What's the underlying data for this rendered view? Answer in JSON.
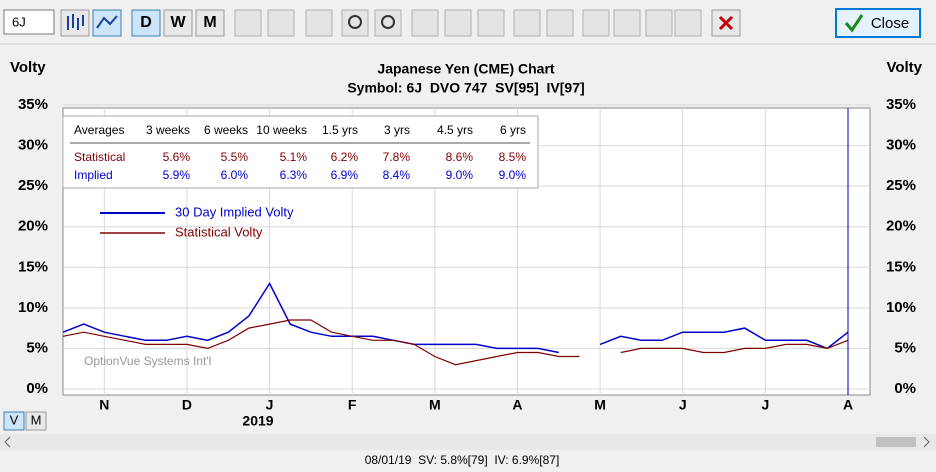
{
  "toolbar": {
    "symbol": "6J",
    "buttons": [
      "D",
      "W",
      "M"
    ],
    "close": "Close"
  },
  "chart_data": {
    "type": "line",
    "title": "Japanese Yen (CME) Chart",
    "subtitle": "Symbol: 6J  DVO 747  SV[95]  IV[97]",
    "y_label": "Volty",
    "watermark": "OptionVue Systems Int'l",
    "year_label": "2019",
    "categories": [
      null,
      null,
      "N",
      null,
      null,
      null,
      "D",
      null,
      null,
      null,
      "J",
      null,
      null,
      null,
      "F",
      null,
      null,
      null,
      "M",
      null,
      null,
      null,
      "A",
      null,
      null,
      null,
      "M",
      null,
      null,
      null,
      "J",
      null,
      null,
      null,
      "J",
      null,
      null,
      null,
      "A"
    ],
    "series": [
      {
        "name": "30 Day Implied Volty",
        "color": "#0000cc",
        "values": [
          7,
          8,
          7,
          6.5,
          6,
          6,
          6.5,
          6,
          7,
          9,
          13,
          8,
          7,
          6.5,
          6.5,
          6.5,
          6,
          5.5,
          5.5,
          5.5,
          5.5,
          5,
          5,
          5,
          4.5,
          null,
          5.5,
          6.5,
          6,
          6,
          7,
          7,
          7,
          7.5,
          6,
          6,
          6,
          5,
          7
        ]
      },
      {
        "name": "Statistical Volty",
        "color": "#800000",
        "values": [
          6.5,
          7,
          6.5,
          6,
          5.5,
          5.5,
          5.5,
          5,
          6,
          7.5,
          8,
          8.5,
          8.5,
          7,
          6.5,
          6,
          6,
          5.5,
          4,
          3,
          3.5,
          4,
          4.5,
          4.5,
          4,
          4,
          null,
          4.5,
          5,
          5,
          5,
          4.5,
          4.5,
          5,
          5,
          5.5,
          5.5,
          5,
          6
        ]
      }
    ],
    "ylim": [
      0,
      35
    ],
    "yticks": [
      {
        "value": 0,
        "label": "0%"
      },
      {
        "value": 5,
        "label": "5%"
      },
      {
        "value": 10,
        "label": "10%"
      },
      {
        "value": 15,
        "label": "15%"
      },
      {
        "value": 20,
        "label": "20%"
      },
      {
        "value": 25,
        "label": "25%"
      },
      {
        "value": 30,
        "label": "30%"
      },
      {
        "value": 35,
        "label": "35%"
      }
    ],
    "grid": true,
    "legend": "upper-left"
  },
  "averages": {
    "header": [
      "Averages",
      "3 weeks",
      "6 weeks",
      "10 weeks",
      "1.5 yrs",
      "3 yrs",
      "4.5 yrs",
      "6 yrs"
    ],
    "rows": [
      [
        "Statistical",
        "5.6%",
        "5.5%",
        "5.1%",
        "6.2%",
        "7.8%",
        "8.6%",
        "8.5%"
      ],
      [
        "Implied",
        "5.9%",
        "6.0%",
        "6.3%",
        "6.9%",
        "8.4%",
        "9.0%",
        "9.0%"
      ]
    ]
  },
  "view_buttons": [
    "V",
    "M"
  ],
  "status": "08/01/19  SV: 5.8%[79]  IV: 6.9%[87]"
}
